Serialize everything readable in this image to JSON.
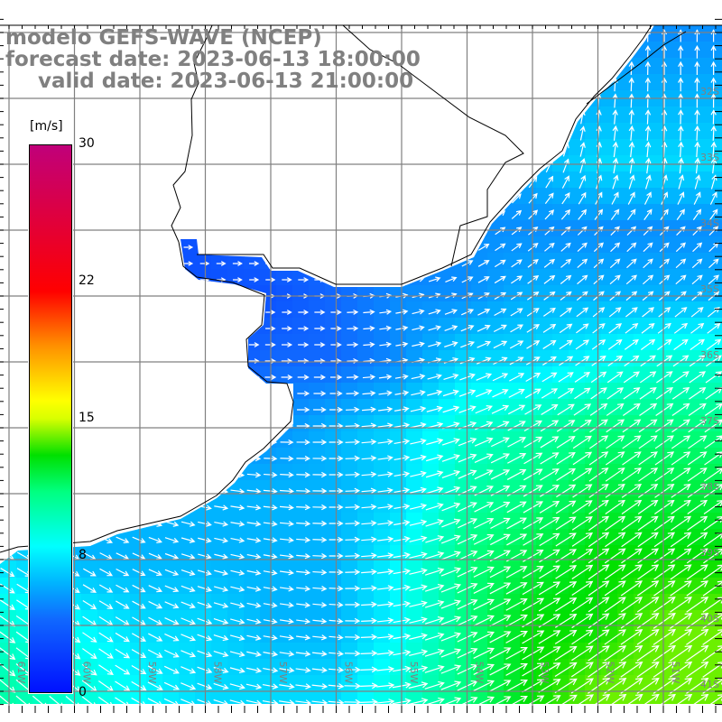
{
  "title": {
    "line1": "modelo GEFS-WAVE (NCEP)",
    "line2": "forecast date: 2023-06-13 18:00:00",
    "line3": "valid date: 2023-06-13 21:00:00"
  },
  "colorbar": {
    "unit": "[m/s]",
    "ticks": [
      "30",
      "22",
      "15",
      "8",
      "0"
    ],
    "tick_values": [
      30,
      22,
      15,
      8,
      0
    ],
    "min": 0,
    "max": 30,
    "stops": [
      {
        "v": 0,
        "c": "#0010ff"
      },
      {
        "v": 4,
        "c": "#1068ff"
      },
      {
        "v": 6,
        "c": "#00b4ff"
      },
      {
        "v": 8,
        "c": "#00ffff"
      },
      {
        "v": 11,
        "c": "#00ff80"
      },
      {
        "v": 13,
        "c": "#00e000"
      },
      {
        "v": 15,
        "c": "#d8ff00"
      },
      {
        "v": 16,
        "c": "#ffff00"
      },
      {
        "v": 19,
        "c": "#ff9000"
      },
      {
        "v": 22,
        "c": "#ff0000"
      },
      {
        "v": 30,
        "c": "#c0007a"
      }
    ]
  },
  "map": {
    "lon_labels": [
      "61W",
      "60W",
      "59W",
      "58W",
      "57W",
      "56W",
      "55W",
      "54W",
      "53W",
      "52W",
      "51W"
    ],
    "lat_labels": [
      "32S",
      "33S",
      "34S",
      "35S",
      "36S",
      "37S",
      "38S",
      "39S",
      "40S",
      "41S"
    ],
    "lon_range": [
      -61,
      -51
    ],
    "lat_range": [
      -31,
      -41
    ],
    "wind_speed_grid_ms": [
      [
        4,
        4,
        4,
        4,
        4,
        4,
        4,
        4,
        4,
        5,
        5
      ],
      [
        4,
        4,
        4,
        4,
        4,
        4,
        4,
        4,
        5,
        6,
        6
      ],
      [
        4,
        4,
        4,
        4,
        4,
        4,
        4,
        5,
        6,
        7,
        7
      ],
      [
        4,
        4,
        3,
        3,
        4,
        4,
        4,
        5,
        5,
        5,
        5
      ],
      [
        4,
        4,
        3,
        3,
        3,
        4,
        5,
        5,
        6,
        6,
        6
      ],
      [
        5,
        5,
        4,
        3,
        4,
        4,
        5,
        7,
        7,
        8,
        9
      ],
      [
        6,
        6,
        5,
        5,
        5,
        6,
        7,
        9,
        10,
        11,
        11
      ],
      [
        6,
        6,
        6,
        6,
        6,
        6,
        7,
        10,
        11,
        12,
        12
      ],
      [
        7,
        6,
        6,
        6,
        6,
        6,
        8,
        11,
        12,
        13,
        13
      ],
      [
        9,
        8,
        7,
        7,
        6,
        6,
        8,
        11,
        13,
        13,
        14
      ],
      [
        10,
        9,
        8,
        7,
        7,
        7,
        9,
        11,
        13,
        14,
        14
      ]
    ],
    "wind_direction_grid_deg": [
      [
        0,
        0,
        0,
        0,
        0,
        0,
        0,
        30,
        60,
        85,
        90
      ],
      [
        0,
        0,
        0,
        0,
        0,
        0,
        0,
        30,
        70,
        85,
        90
      ],
      [
        0,
        0,
        0,
        0,
        0,
        0,
        10,
        40,
        60,
        80,
        85
      ],
      [
        0,
        0,
        0,
        0,
        0,
        0,
        10,
        30,
        40,
        45,
        45
      ],
      [
        0,
        0,
        0,
        0,
        0,
        0,
        10,
        25,
        35,
        40,
        40
      ],
      [
        0,
        0,
        0,
        0,
        0,
        0,
        10,
        20,
        30,
        35,
        35
      ],
      [
        -10,
        -10,
        -5,
        0,
        0,
        0,
        10,
        20,
        30,
        35,
        35
      ],
      [
        -20,
        -20,
        -15,
        -10,
        -5,
        0,
        10,
        25,
        30,
        35,
        35
      ],
      [
        -30,
        -30,
        -25,
        -15,
        -10,
        0,
        10,
        25,
        30,
        35,
        35
      ],
      [
        -35,
        -35,
        -30,
        -20,
        -10,
        -5,
        10,
        25,
        30,
        35,
        35
      ],
      [
        -40,
        -40,
        -30,
        -20,
        -10,
        -5,
        10,
        25,
        30,
        35,
        35
      ]
    ]
  }
}
